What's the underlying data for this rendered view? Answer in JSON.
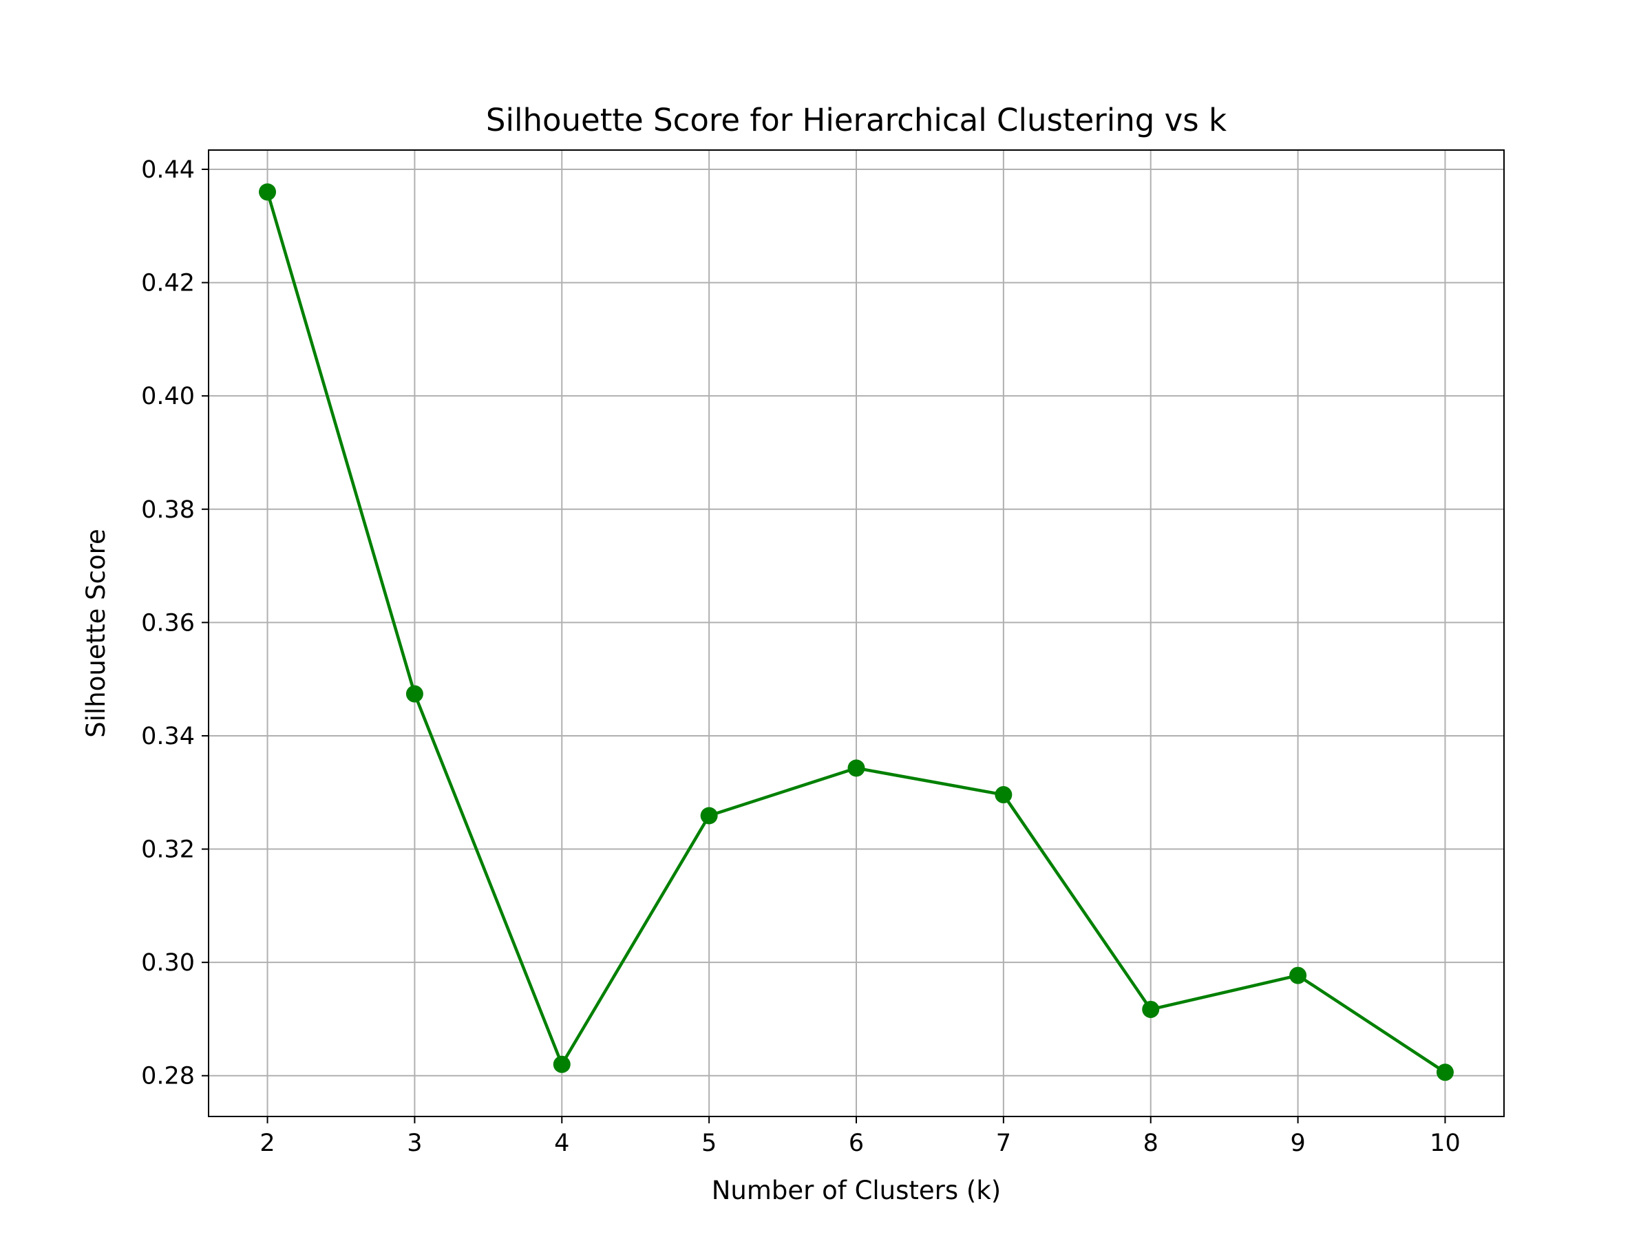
{
  "chart_data": {
    "type": "line",
    "title": "Silhouette Score for Hierarchical Clustering vs k",
    "xlabel": "Number of Clusters (k)",
    "ylabel": "Silhouette Score",
    "x": [
      2,
      3,
      4,
      5,
      6,
      7,
      8,
      9,
      10
    ],
    "series": [
      {
        "values": [
          0.436,
          0.3474,
          0.282,
          0.3259,
          0.3343,
          0.3296,
          0.2917,
          0.2977,
          0.2806
        ],
        "color": "#008000",
        "marker": "circle"
      }
    ],
    "xticks": [
      "2",
      "3",
      "4",
      "5",
      "6",
      "7",
      "8",
      "9",
      "10"
    ],
    "yticks": [
      "0.28",
      "0.30",
      "0.32",
      "0.34",
      "0.36",
      "0.38",
      "0.40",
      "0.42",
      "0.44"
    ],
    "xlim": [
      1.6,
      10.4
    ],
    "ylim": [
      0.2728,
      0.4434
    ],
    "grid": true,
    "legend": "none"
  }
}
